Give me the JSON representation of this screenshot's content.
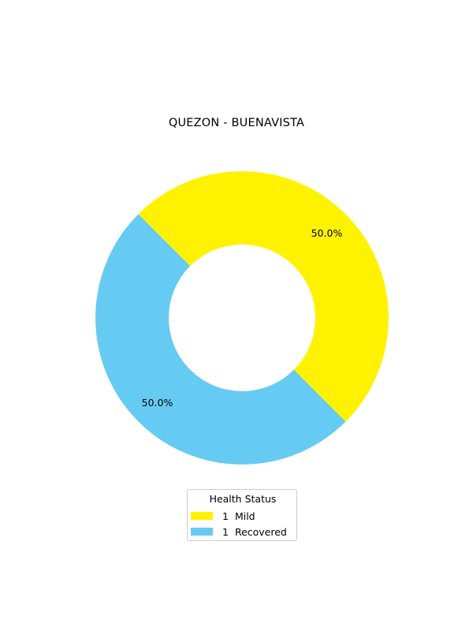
{
  "chart_data": {
    "type": "pie",
    "title": "QUEZON - BUENAVISTA",
    "donut": true,
    "slices": [
      {
        "label": "Mild",
        "count": "1",
        "value": 1,
        "percent_label": "50.0%",
        "color": "#fff200"
      },
      {
        "label": "Recovered",
        "count": "1",
        "value": 1,
        "percent_label": "50.0%",
        "color": "#66cbf2"
      }
    ],
    "legend": {
      "title": "Health Status",
      "placement": "bottom-center"
    }
  }
}
